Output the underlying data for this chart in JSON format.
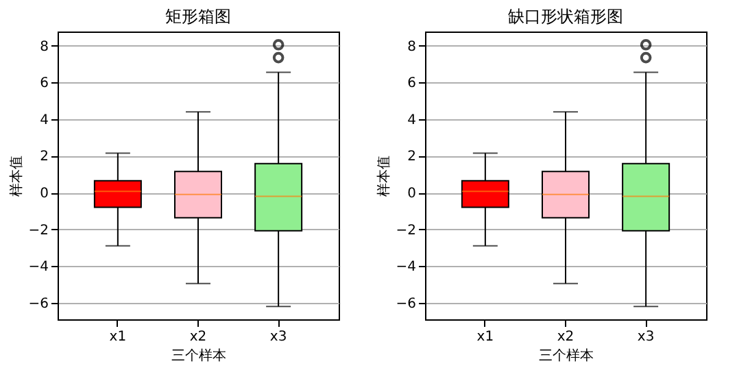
{
  "chart_data": [
    {
      "type": "box",
      "title": "矩形箱图",
      "xlabel": "三个样本",
      "ylabel": "样本值",
      "categories": [
        "x1",
        "x2",
        "x3"
      ],
      "colors": [
        "#ff0000",
        "#ffc0cb",
        "#90ee90"
      ],
      "boxes": [
        {
          "low": -2.9,
          "q1": -0.8,
          "median": 0.07,
          "q3": 0.65,
          "high": 2.15
        },
        {
          "low": -4.95,
          "q1": -1.37,
          "median": -0.1,
          "q3": 1.15,
          "high": 4.4
        },
        {
          "low": -6.2,
          "q1": -2.08,
          "median": -0.2,
          "q3": 1.58,
          "high": 6.55,
          "outliers": [
            7.35,
            8.05
          ]
        }
      ],
      "ylim": [
        -6.9,
        8.77
      ],
      "yticks": [
        -6,
        -4,
        -2,
        0,
        2,
        4,
        6,
        8
      ],
      "grid": "y"
    },
    {
      "type": "box",
      "title": "缺口形状箱形图",
      "xlabel": "三个样本",
      "ylabel": "样本值",
      "categories": [
        "x1",
        "x2",
        "x3"
      ],
      "colors": [
        "#ff0000",
        "#ffc0cb",
        "#90ee90"
      ],
      "boxes": [
        {
          "low": -2.9,
          "q1": -0.8,
          "median": 0.07,
          "q3": 0.65,
          "high": 2.15
        },
        {
          "low": -4.95,
          "q1": -1.37,
          "median": -0.1,
          "q3": 1.15,
          "high": 4.4
        },
        {
          "low": -6.2,
          "q1": -2.08,
          "median": -0.2,
          "q3": 1.58,
          "high": 6.55,
          "outliers": [
            7.35,
            8.05
          ]
        }
      ],
      "ylim": [
        -6.9,
        8.77
      ],
      "yticks": [
        -6,
        -4,
        -2,
        0,
        2,
        4,
        6,
        8
      ],
      "grid": "y"
    }
  ]
}
